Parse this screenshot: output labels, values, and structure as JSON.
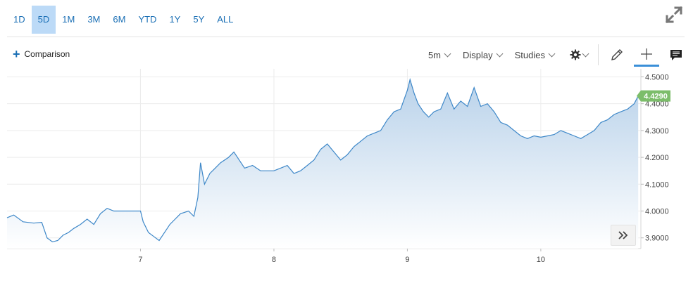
{
  "range_tabs": [
    "1D",
    "5D",
    "1M",
    "3M",
    "6M",
    "YTD",
    "1Y",
    "5Y",
    "ALL"
  ],
  "active_range": "5D",
  "toolbar": {
    "comparison_label": "Comparison",
    "interval_label": "5m",
    "display_label": "Display",
    "studies_label": "Studies"
  },
  "colors": {
    "accent": "#1a6fb5",
    "line": "#3d87c8",
    "last_badge": "#7cbd6a",
    "active_tab_bg": "#bcdaf7"
  },
  "icons": [
    "expand-icon",
    "plus-icon",
    "gear-icon",
    "pencil-icon",
    "crosshair-icon",
    "comment-icon",
    "double-chevron-right-icon"
  ],
  "chart_data": {
    "type": "area",
    "x_tick_labels": [
      "7",
      "8",
      "9",
      "10"
    ],
    "x_tick_positions": [
      7,
      8,
      9,
      10
    ],
    "xlim": [
      6.0,
      10.75
    ],
    "y_tick_labels": [
      "4.5000",
      "4.4000",
      "4.3000",
      "4.2000",
      "4.1000",
      "4.0000",
      "3.9000"
    ],
    "y_tick_values": [
      4.5,
      4.4,
      4.3,
      4.2,
      4.1,
      4.0,
      3.9
    ],
    "ylim": [
      3.86,
      4.53
    ],
    "last_value_label": "4.4290",
    "last_value": 4.429,
    "grid": true,
    "x": [
      6.0,
      6.05,
      6.12,
      6.2,
      6.26,
      6.3,
      6.34,
      6.38,
      6.42,
      6.46,
      6.5,
      6.55,
      6.6,
      6.65,
      6.7,
      6.75,
      6.8,
      6.85,
      6.9,
      6.95,
      7.0,
      7.02,
      7.06,
      7.1,
      7.14,
      7.18,
      7.22,
      7.26,
      7.3,
      7.36,
      7.4,
      7.43,
      7.45,
      7.48,
      7.52,
      7.56,
      7.6,
      7.66,
      7.7,
      7.74,
      7.78,
      7.84,
      7.9,
      7.95,
      8.0,
      8.05,
      8.1,
      8.15,
      8.2,
      8.25,
      8.3,
      8.35,
      8.4,
      8.45,
      8.5,
      8.55,
      8.6,
      8.65,
      8.7,
      8.75,
      8.8,
      8.85,
      8.9,
      8.95,
      9.0,
      9.02,
      9.05,
      9.08,
      9.12,
      9.16,
      9.2,
      9.25,
      9.3,
      9.35,
      9.4,
      9.45,
      9.5,
      9.55,
      9.6,
      9.65,
      9.7,
      9.75,
      9.8,
      9.85,
      9.9,
      9.95,
      10.0,
      10.05,
      10.1,
      10.15,
      10.2,
      10.25,
      10.3,
      10.35,
      10.4,
      10.45,
      10.5,
      10.55,
      10.6,
      10.65,
      10.7,
      10.73
    ],
    "values": [
      3.975,
      3.985,
      3.96,
      3.955,
      3.958,
      3.9,
      3.885,
      3.89,
      3.91,
      3.92,
      3.935,
      3.95,
      3.97,
      3.95,
      3.99,
      4.01,
      4.0,
      4.0,
      4.0,
      4.0,
      4.0,
      3.96,
      3.92,
      3.905,
      3.89,
      3.92,
      3.95,
      3.97,
      3.99,
      4.0,
      3.98,
      4.05,
      4.18,
      4.1,
      4.14,
      4.16,
      4.18,
      4.2,
      4.22,
      4.19,
      4.16,
      4.17,
      4.15,
      4.15,
      4.15,
      4.16,
      4.17,
      4.14,
      4.15,
      4.17,
      4.19,
      4.23,
      4.25,
      4.22,
      4.19,
      4.21,
      4.24,
      4.26,
      4.28,
      4.29,
      4.3,
      4.34,
      4.37,
      4.38,
      4.45,
      4.49,
      4.44,
      4.4,
      4.37,
      4.35,
      4.37,
      4.38,
      4.44,
      4.38,
      4.41,
      4.39,
      4.46,
      4.39,
      4.4,
      4.37,
      4.33,
      4.32,
      4.3,
      4.28,
      4.27,
      4.28,
      4.275,
      4.28,
      4.285,
      4.3,
      4.29,
      4.28,
      4.27,
      4.285,
      4.3,
      4.33,
      4.34,
      4.36,
      4.37,
      4.38,
      4.4,
      4.429
    ]
  }
}
